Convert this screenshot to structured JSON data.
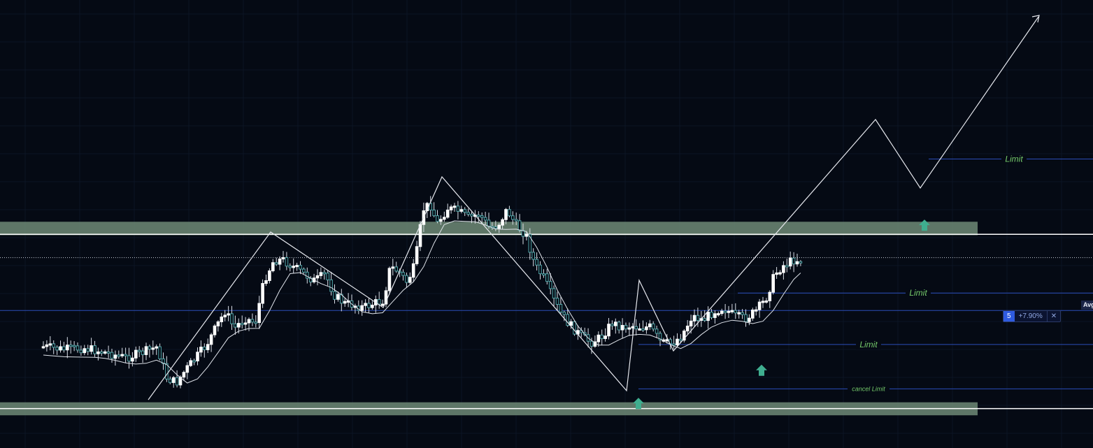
{
  "colors": {
    "background": "#050a14",
    "grid": "#0c1424",
    "zone_fill": "#6e8a76",
    "candle_up": "#ffffff",
    "candle_down": "#4fa3a6",
    "wick": "#d8dde6",
    "ma_line": "#dfe3ea",
    "pattern_line": "#e6e8ee",
    "blue_line": "#2b4db8",
    "label_green": "#74c96a",
    "arrow_teal": "#3fae8f"
  },
  "labels": {
    "limit_1": "Limit",
    "limit_2": "Limit",
    "limit_3": "Limit",
    "cancel_limit": "cancel Limit"
  },
  "position": {
    "qty": "5",
    "pct": "+7.90%",
    "close": "✕"
  },
  "avg_tag": "Avg",
  "chart_data": {
    "type": "candlestick",
    "price_scale": {
      "ymin": 0,
      "ymax": 100
    },
    "zones": [
      {
        "low": 47.5,
        "high": 50.5
      },
      {
        "low": 7.3,
        "high": 10.2
      }
    ],
    "horizontal_lines": [
      {
        "y": 47.7,
        "style": "solid-white"
      },
      {
        "y": 8.8,
        "style": "solid-white"
      },
      {
        "y": 42.5,
        "style": "dotted-white"
      },
      {
        "y": 30.7,
        "style": "blue"
      }
    ],
    "limit_lines": [
      {
        "label": "Limit",
        "y": 64.5,
        "x_start": 1328,
        "x_end": 1563
      },
      {
        "label": "Limit",
        "y": 34.6,
        "x_start": 1055,
        "x_end": 1563
      },
      {
        "label": "Limit",
        "y": 23.1,
        "x_start": 913,
        "x_end": 1563
      },
      {
        "label": "cancel Limit",
        "y": 13.2,
        "x_start": 913,
        "x_end": 1563
      }
    ],
    "candles_range": {
      "first_x": 62,
      "last_x": 1148
    },
    "arrows": [
      {
        "x": 913,
        "y": 9.8
      },
      {
        "x": 1089,
        "y": 17.2
      },
      {
        "x": 1322,
        "y": 49.6
      }
    ]
  }
}
